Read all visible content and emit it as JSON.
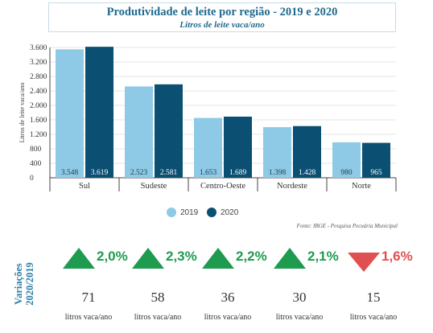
{
  "header": {
    "title": "Produtividade de leite por região - 2019 e 2020",
    "subtitle": "Litros de leite vaca/ano"
  },
  "chart_data": {
    "type": "bar",
    "title": "Produtividade de leite por região - 2019 e 2020",
    "subtitle": "Litros de leite vaca/ano",
    "ylabel": "Litros de leite vaca/ano",
    "xlabel": "",
    "categories": [
      "Sul",
      "Sudeste",
      "Centro-Oeste",
      "Nordeste",
      "Norte"
    ],
    "ylim": [
      0,
      3600
    ],
    "yticks": [
      0,
      400,
      800,
      1200,
      1600,
      2000,
      2400,
      2800,
      3200,
      3600
    ],
    "ytick_labels": [
      "0",
      "400",
      "800",
      "1.200",
      "1.600",
      "2.000",
      "2.400",
      "2.800",
      "3.200",
      "3.600"
    ],
    "series": [
      {
        "name": "2019",
        "color": "#8ecae6",
        "values": [
          3548,
          2523,
          1653,
          1398,
          980
        ],
        "labels": [
          "3.548",
          "2.523",
          "1.653",
          "1.398",
          "980"
        ]
      },
      {
        "name": "2020",
        "color": "#0b4f73",
        "values": [
          3619,
          2581,
          1689,
          1428,
          965
        ],
        "labels": [
          "3.619",
          "2.581",
          "1.689",
          "1.428",
          "965"
        ]
      }
    ],
    "legend": "bottom-center",
    "grid": true
  },
  "source": "Fonte: IBGE - Pesquisa Pecuária Municipal",
  "variations": {
    "label_line1": "Variações",
    "label_line2": "2020/2019",
    "unit": "litros vaca/ano",
    "items": [
      {
        "direction": "up",
        "pct": "2,0%",
        "amount": "71"
      },
      {
        "direction": "up",
        "pct": "2,3%",
        "amount": "58"
      },
      {
        "direction": "up",
        "pct": "2,2%",
        "amount": "36"
      },
      {
        "direction": "up",
        "pct": "2,1%",
        "amount": "30"
      },
      {
        "direction": "down",
        "pct": "1,6%",
        "amount": "15"
      }
    ],
    "up_color": "#1e9b4f",
    "down_color": "#e05050",
    "up_text_color": "#1e9b4f",
    "down_text_color": "#e05050"
  }
}
